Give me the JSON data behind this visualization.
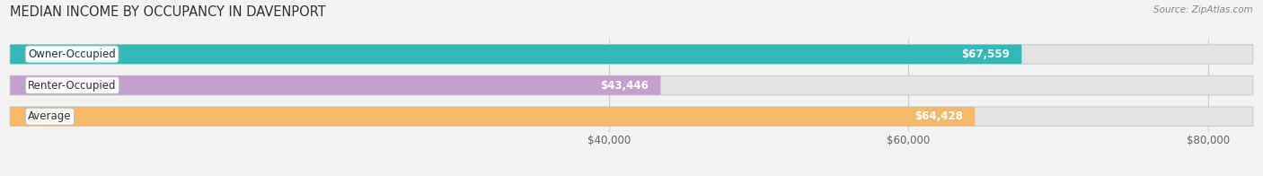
{
  "title": "MEDIAN INCOME BY OCCUPANCY IN DAVENPORT",
  "source": "Source: ZipAtlas.com",
  "categories": [
    "Owner-Occupied",
    "Renter-Occupied",
    "Average"
  ],
  "values": [
    67559,
    43446,
    64428
  ],
  "bar_colors": [
    "#35b8b8",
    "#c4a0cf",
    "#f5b96a"
  ],
  "bar_labels": [
    "$67,559",
    "$43,446",
    "$64,428"
  ],
  "xlim": [
    0,
    83000
  ],
  "xticks": [
    40000,
    60000,
    80000
  ],
  "xticklabels": [
    "$40,000",
    "$60,000",
    "$80,000"
  ],
  "background_color": "#f2f2f2",
  "bar_bg_color": "#e4e4e4",
  "bar_height": 0.62,
  "title_fontsize": 10.5,
  "label_fontsize": 8.5,
  "tick_fontsize": 8.5,
  "bar_max": 83000
}
